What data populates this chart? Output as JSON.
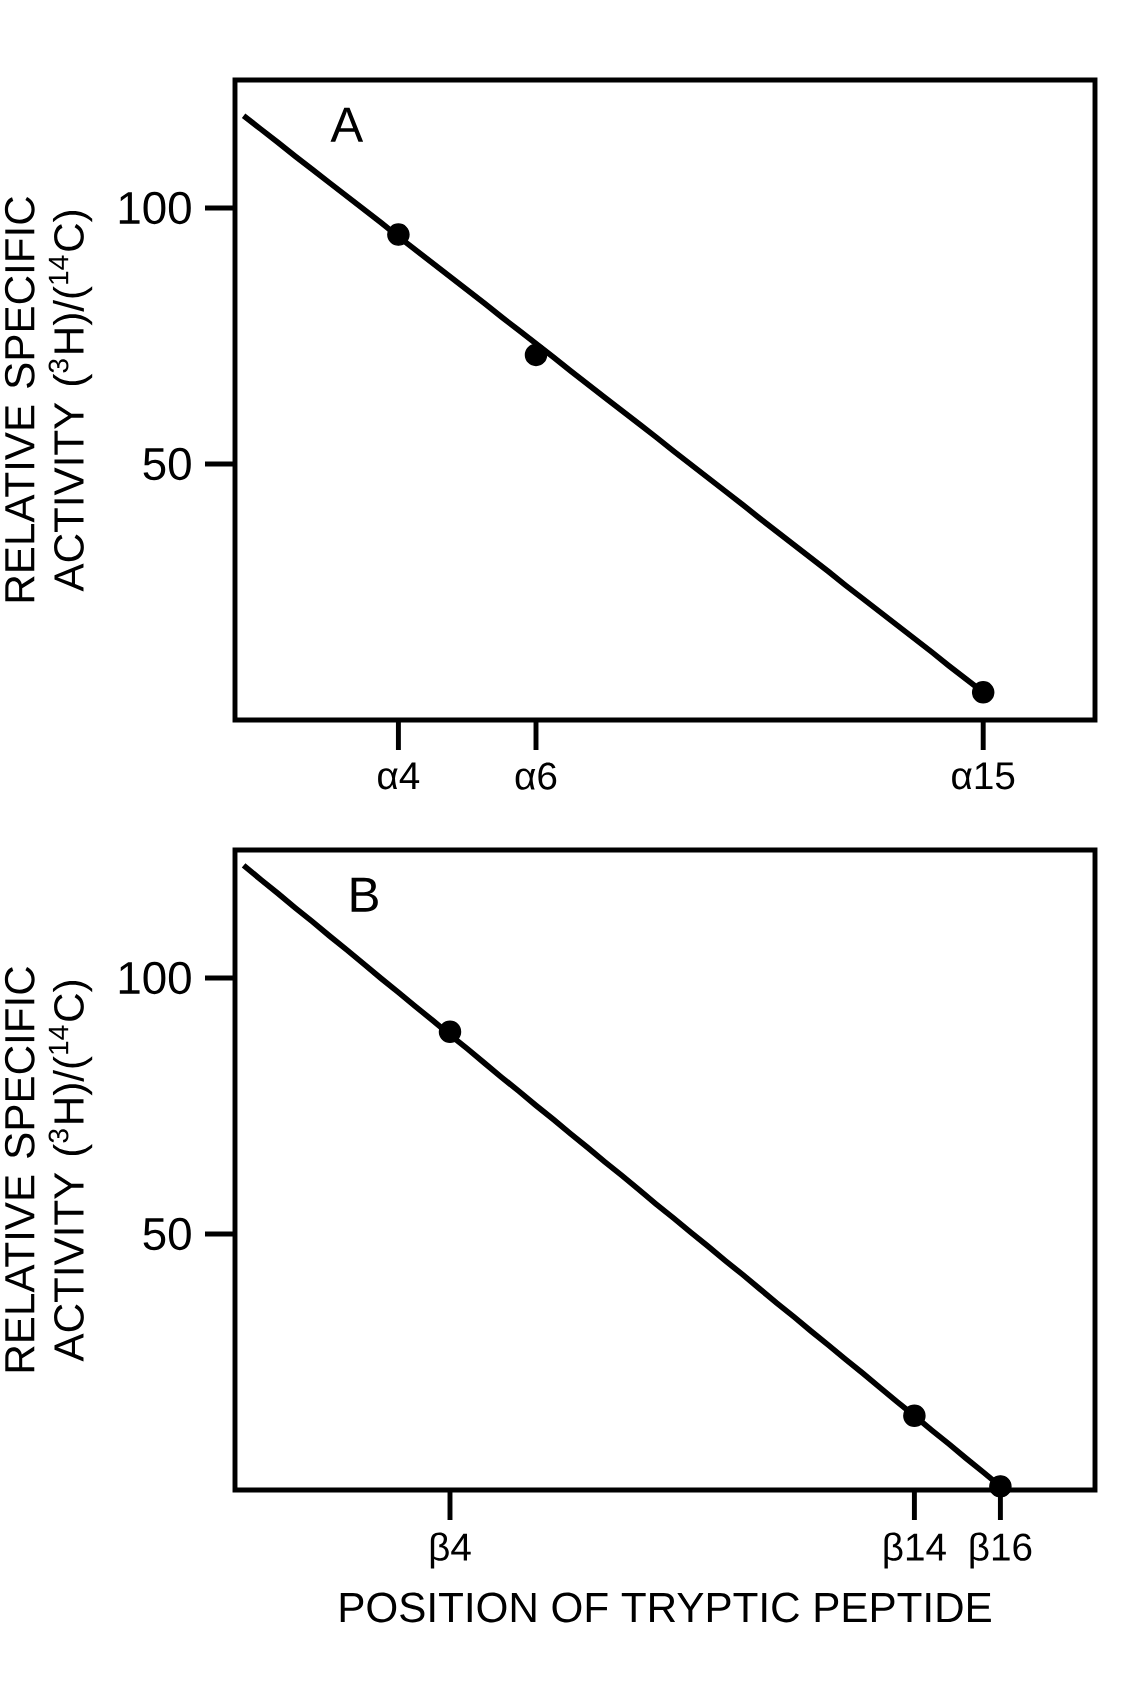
{
  "chart_data": [
    {
      "type": "line",
      "ylabel": "RELATIVE SPECIFIC ACTIVITY ($^{3}$H)/($^{14}$C)",
      "annotations": [
        "A"
      ],
      "categories": [
        null,
        null,
        null,
        null,
        null,
        null,
        null,
        null,
        null,
        "α4",
        null,
        null,
        null,
        null,
        null,
        null,
        null,
        "α6",
        null,
        null,
        null,
        null,
        null,
        null,
        null,
        null,
        null,
        null,
        null,
        null,
        null,
        null,
        null,
        null,
        null,
        null,
        null,
        null,
        null,
        null,
        null,
        null,
        null,
        "α15",
        null,
        null,
        null,
        null,
        null,
        null
      ],
      "ylim": [
        0,
        125
      ],
      "yticks": [
        50,
        100
      ],
      "series": [
        {
          "type": "scatter",
          "marker": "circle",
          "color": "#000000",
          "values": [
            null,
            null,
            null,
            null,
            null,
            null,
            null,
            null,
            null,
            94.8,
            null,
            null,
            null,
            null,
            null,
            null,
            null,
            71.3,
            null,
            null,
            null,
            null,
            null,
            null,
            null,
            null,
            null,
            null,
            null,
            null,
            null,
            null,
            null,
            null,
            null,
            null,
            null,
            null,
            null,
            null,
            null,
            null,
            null,
            5.4,
            null,
            null,
            null,
            null,
            null,
            null
          ]
        },
        {
          "color": "#000000",
          "values": [
            118.0,
            115.4,
            112.8,
            110.1,
            107.5,
            104.9,
            102.3,
            99.7,
            97.1,
            94.4,
            91.8,
            89.2,
            86.6,
            84.0,
            81.4,
            78.7,
            76.1,
            73.5,
            70.9,
            68.2,
            65.6,
            63.0,
            60.4,
            57.8,
            55.2,
            52.5,
            49.9,
            47.3,
            44.7,
            42.1,
            39.4,
            36.8,
            34.2,
            31.6,
            29.0,
            26.3,
            23.7,
            21.1,
            18.5,
            15.9,
            13.3,
            10.6,
            8.0,
            5.4,
            null,
            null,
            null,
            null,
            null,
            null
          ]
        }
      ]
    },
    {
      "type": "line",
      "xlabel": "POSITION OF TRYPTIC PEPTIDE",
      "ylabel": "RELATIVE SPECIFIC ACTIVITY ($^{3}$H)/($^{14}$C)",
      "annotations": [
        "B"
      ],
      "categories": [
        null,
        null,
        null,
        null,
        null,
        null,
        null,
        null,
        null,
        null,
        null,
        null,
        "β4",
        null,
        null,
        null,
        null,
        null,
        null,
        null,
        null,
        null,
        null,
        null,
        null,
        null,
        null,
        null,
        null,
        null,
        null,
        null,
        null,
        null,
        null,
        null,
        null,
        null,
        null,
        "β14",
        null,
        null,
        null,
        null,
        "β16",
        null,
        null,
        null,
        null,
        null
      ],
      "ylim": [
        0,
        125
      ],
      "yticks": [
        50,
        100
      ],
      "series": [
        {
          "type": "scatter",
          "marker": "circle",
          "color": "#000000",
          "values": [
            null,
            null,
            null,
            null,
            null,
            null,
            null,
            null,
            null,
            null,
            null,
            null,
            89.5,
            null,
            null,
            null,
            null,
            null,
            null,
            null,
            null,
            null,
            null,
            null,
            null,
            null,
            null,
            null,
            null,
            null,
            null,
            null,
            null,
            null,
            null,
            null,
            null,
            null,
            null,
            14.5,
            null,
            null,
            null,
            null,
            0.7,
            null,
            null,
            null,
            null,
            null
          ]
        },
        {
          "color": "#000000",
          "values": [
            122.0,
            119.2,
            116.5,
            113.7,
            111.0,
            108.2,
            105.5,
            102.7,
            99.9,
            97.2,
            94.4,
            91.7,
            88.9,
            86.2,
            83.4,
            80.6,
            77.9,
            75.1,
            72.4,
            69.6,
            66.9,
            64.1,
            61.4,
            58.6,
            55.8,
            53.1,
            50.3,
            47.6,
            44.8,
            42.1,
            39.3,
            36.5,
            33.8,
            31.0,
            28.3,
            25.5,
            22.8,
            20.0,
            17.2,
            14.5,
            11.7,
            9.0,
            6.2,
            3.5,
            0.7,
            null,
            null,
            null,
            null,
            null
          ]
        }
      ]
    }
  ]
}
